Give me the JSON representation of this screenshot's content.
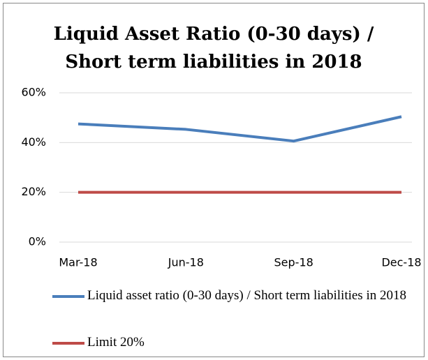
{
  "chart_data": {
    "type": "line",
    "title": [
      "Liquid Asset Ratio (0-30 days) /",
      "Short term liabilities in 2018"
    ],
    "categories": [
      "Mar-18",
      "Jun-18",
      "Sep-18",
      "Dec-18"
    ],
    "series": [
      {
        "name": "Liquid asset ratio (0-30 days) / Short term liabilities in 2018",
        "color": "#4a7ebb",
        "values": [
          47.5,
          45.3,
          40.6,
          50.4
        ]
      },
      {
        "name": "Limit 20%",
        "color": "#be4b48",
        "values": [
          20,
          20,
          20,
          20
        ]
      }
    ],
    "ylim": [
      0,
      60
    ],
    "yticks": [
      {
        "value": 0,
        "label": "0%"
      },
      {
        "value": 20,
        "label": "20%"
      },
      {
        "value": 40,
        "label": "40%"
      },
      {
        "value": 60,
        "label": "60%"
      }
    ],
    "grid": true,
    "legend": "bottom"
  }
}
